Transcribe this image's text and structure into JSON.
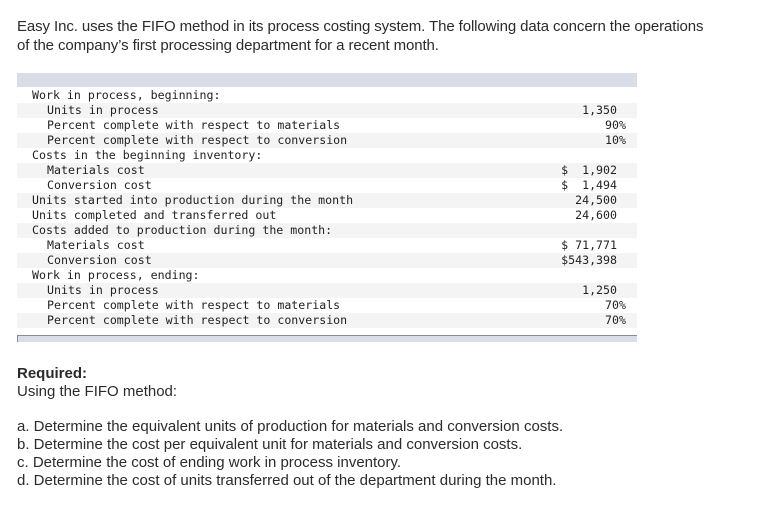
{
  "intro": {
    "line1": "Easy Inc. uses the FIFO method in its process costing system. The following data concern the operations",
    "line2": "of the company’s first processing department for a recent month."
  },
  "table": {
    "rows": [
      {
        "label": "Work in process, beginning:",
        "value": "",
        "level": 0
      },
      {
        "label": "Units in process",
        "value": "1,350",
        "level": 1
      },
      {
        "label": "Percent complete with respect to materials",
        "value": "90%",
        "level": 1,
        "pct": true
      },
      {
        "label": "Percent complete with respect to conversion",
        "value": "10%",
        "level": 1,
        "pct": true
      },
      {
        "label": "Costs in the beginning inventory:",
        "value": "",
        "level": 0
      },
      {
        "label": "Materials cost",
        "value": "$  1,902",
        "level": 1
      },
      {
        "label": "Conversion cost",
        "value": "$  1,494",
        "level": 1
      },
      {
        "label": "Units started into production during the month",
        "value": "24,500",
        "level": 0
      },
      {
        "label": "Units completed and transferred out",
        "value": "24,600",
        "level": 0
      },
      {
        "label": "Costs added to production during the month:",
        "value": "",
        "level": 0
      },
      {
        "label": "Materials cost",
        "value": "$ 71,771",
        "level": 1
      },
      {
        "label": "Conversion cost",
        "value": "$543,398",
        "level": 1
      },
      {
        "label": "Work in process, ending:",
        "value": "",
        "level": 0
      },
      {
        "label": "Units in process",
        "value": "1,250",
        "level": 1
      },
      {
        "label": "Percent complete with respect to materials",
        "value": "70%",
        "level": 1,
        "pct": true
      },
      {
        "label": "Percent complete with respect to conversion",
        "value": "70%",
        "level": 1,
        "pct": true
      }
    ]
  },
  "required": {
    "title": "Required:",
    "subtitle": "Using the FIFO method:",
    "items": [
      "a. Determine the equivalent units of production for materials and conversion costs.",
      "b. Determine the cost per equivalent unit for materials and conversion costs.",
      "c. Determine the cost of ending work in process inventory.",
      "d. Determine the cost of units transferred out of the department during the month."
    ]
  },
  "colors": {
    "table_header_bg": "#d9dde8",
    "row_shade_bg": "#f4f4f4",
    "text": "#2b2b2b"
  }
}
